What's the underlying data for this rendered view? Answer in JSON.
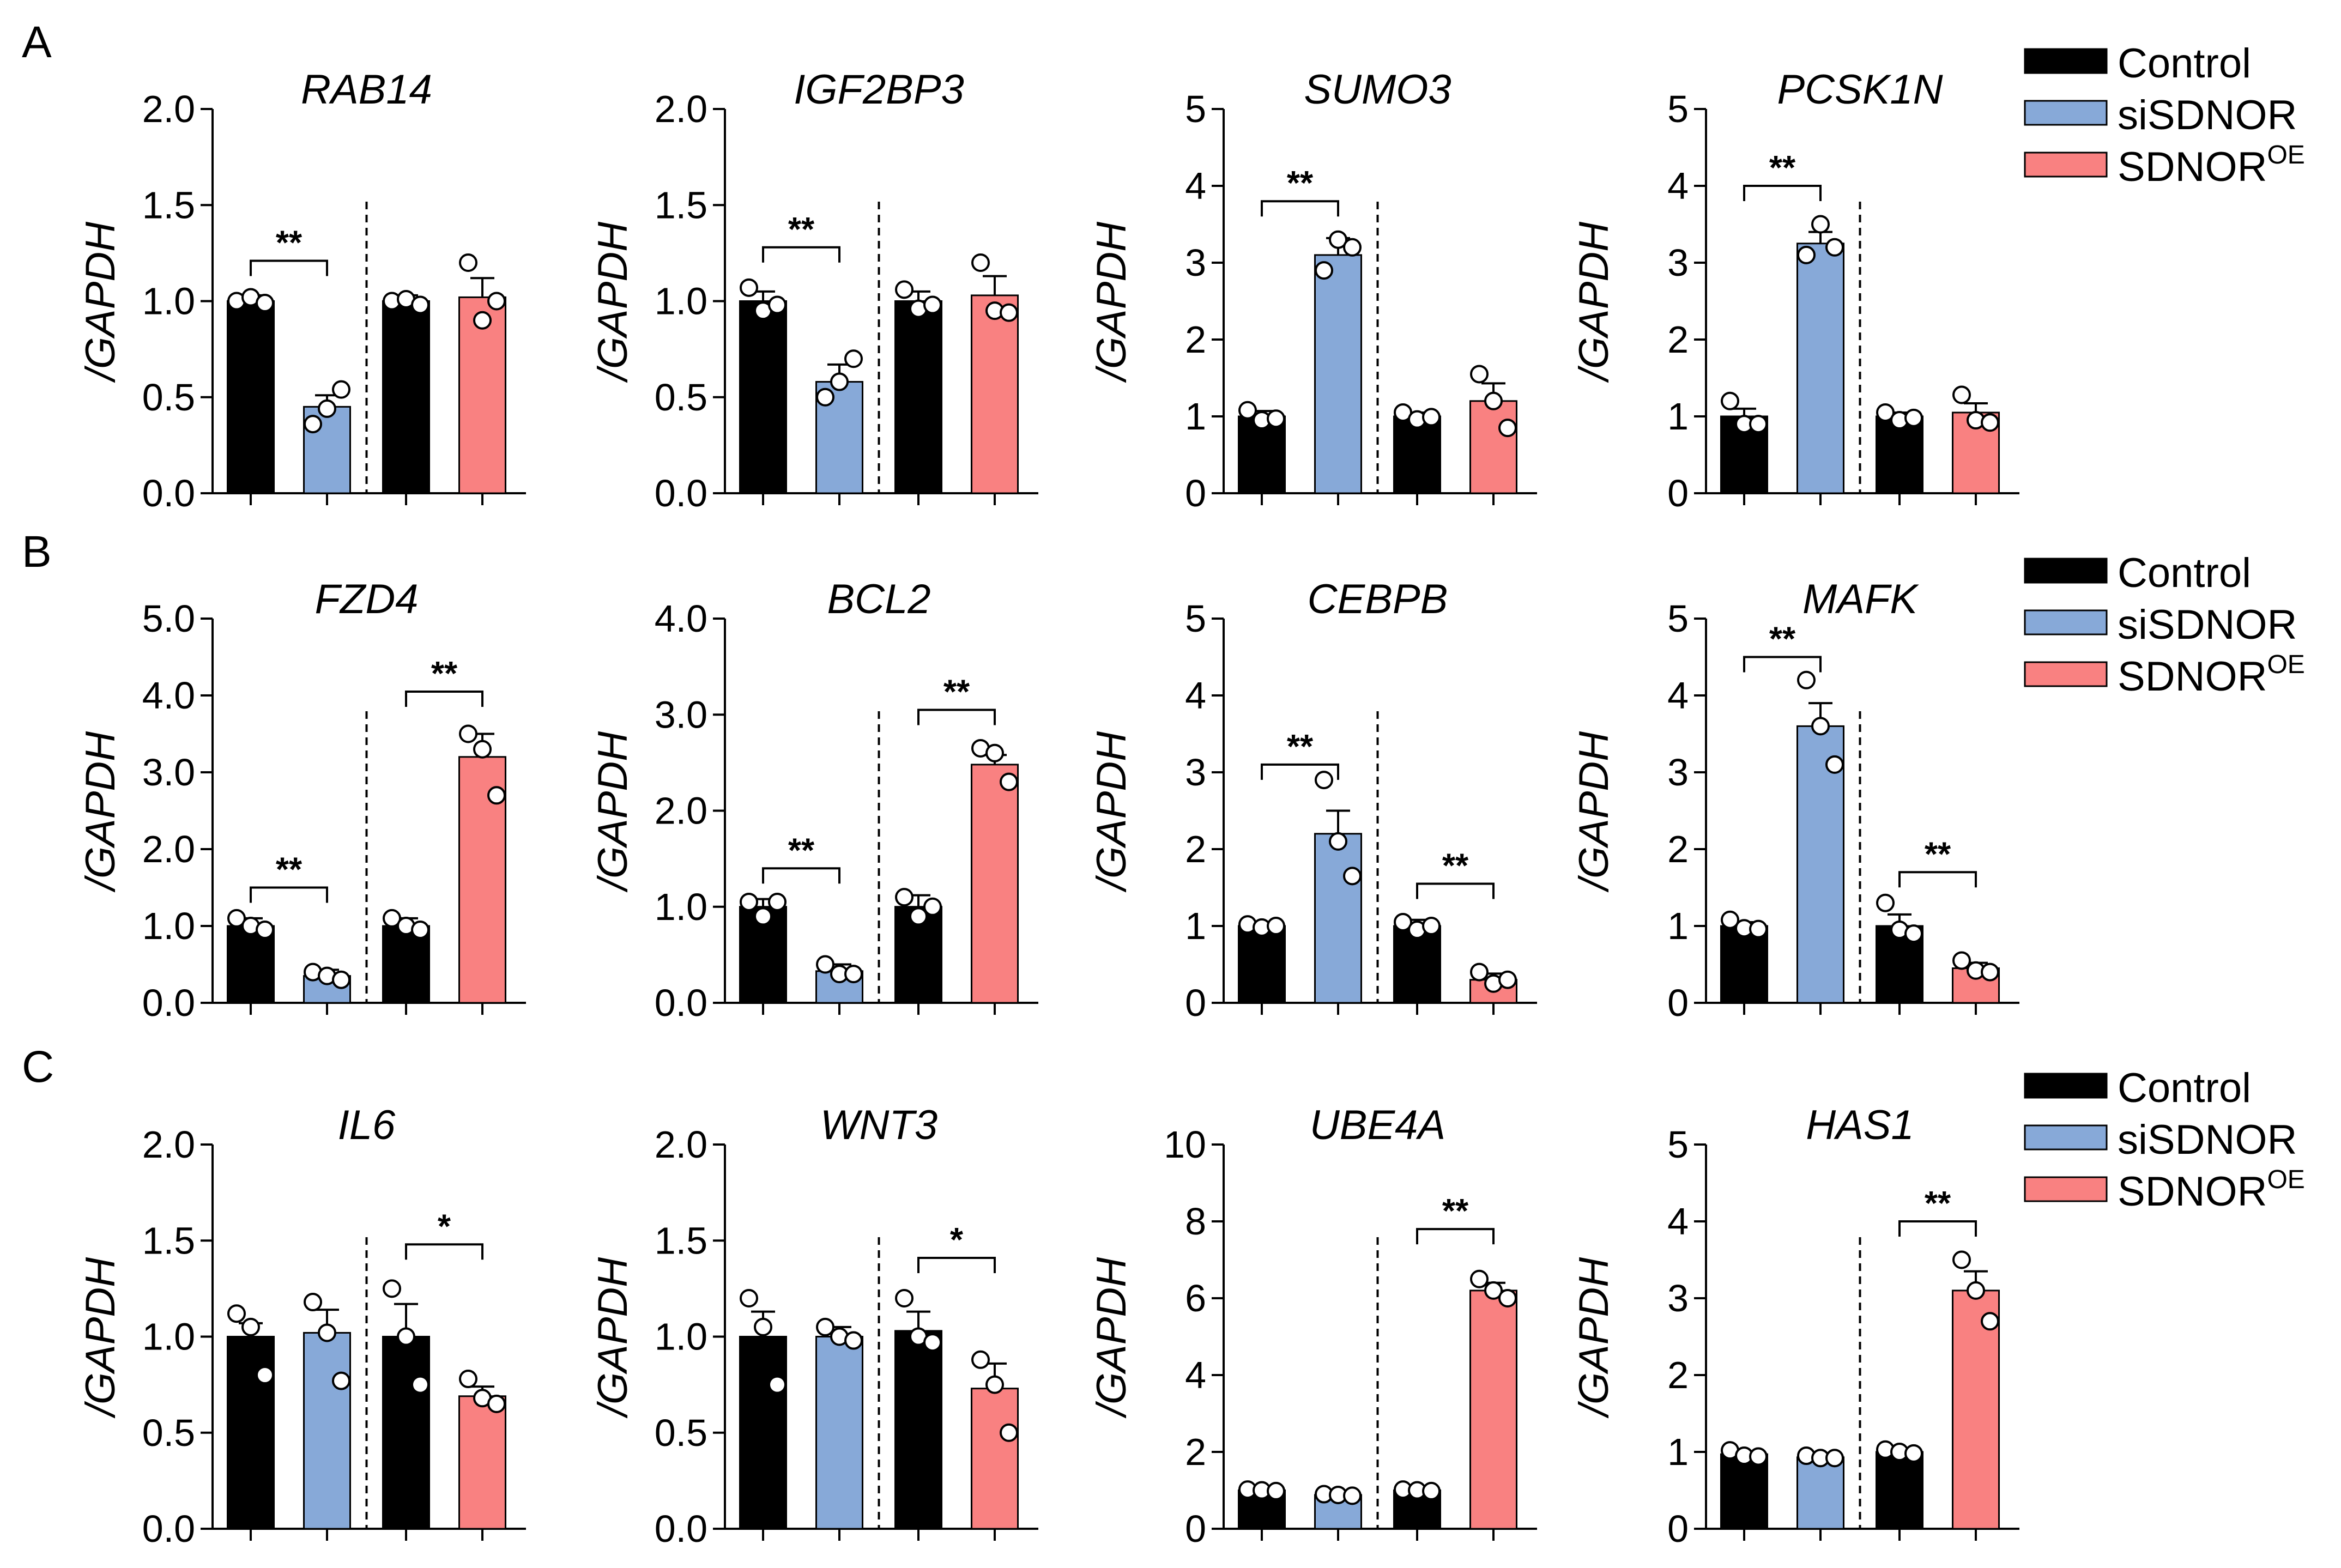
{
  "colors": {
    "Control": "#000000",
    "siSDNOR": "#87A9D8",
    "SDNOROE": "#F98181"
  },
  "panel_letters": [
    "A",
    "B",
    "C"
  ],
  "legend": [
    {
      "label": "Control",
      "sup": "",
      "color": "#000000"
    },
    {
      "label": "siSDNOR",
      "sup": "",
      "color": "#87A9D8"
    },
    {
      "label": "SDNOR",
      "sup": "OE",
      "color": "#F98181"
    }
  ],
  "chart_data": [
    {
      "type": "bar",
      "gene": "RAB14",
      "ylabel": "/GAPDH",
      "ylim": [
        0,
        2
      ],
      "yticks": [
        "0.0",
        "0.5",
        "1.0",
        "1.5",
        "2.0"
      ],
      "values": [
        1.0,
        0.45,
        1.0,
        1.02
      ],
      "errors": [
        0.03,
        0.06,
        0.03,
        0.1
      ],
      "points": [
        [
          1.0,
          1.02,
          0.99
        ],
        [
          0.36,
          0.44,
          0.54
        ],
        [
          1.0,
          1.01,
          0.98
        ],
        [
          1.2,
          0.9,
          1.0
        ]
      ],
      "significance": [
        {
          "bars": [
            0,
            1
          ],
          "label": "**",
          "y": 1.21
        }
      ]
    },
    {
      "type": "bar",
      "gene": "IGF2BP3",
      "ylabel": "/GAPDH",
      "ylim": [
        0,
        2
      ],
      "yticks": [
        "0.0",
        "0.5",
        "1.0",
        "1.5",
        "2.0"
      ],
      "values": [
        1.0,
        0.58,
        1.0,
        1.03
      ],
      "errors": [
        0.05,
        0.09,
        0.05,
        0.1
      ],
      "points": [
        [
          1.07,
          0.95,
          0.98
        ],
        [
          0.5,
          0.58,
          0.7
        ],
        [
          1.06,
          0.96,
          0.98
        ],
        [
          1.2,
          0.95,
          0.94
        ]
      ],
      "significance": [
        {
          "bars": [
            0,
            1
          ],
          "label": "**",
          "y": 1.28
        }
      ]
    },
    {
      "type": "bar",
      "gene": "SUMO3",
      "ylabel": "/GAPDH",
      "ylim": [
        0,
        5
      ],
      "yticks": [
        "0",
        "1",
        "2",
        "3",
        "4",
        "5"
      ],
      "values": [
        1.0,
        3.1,
        1.0,
        1.2
      ],
      "errors": [
        0.07,
        0.22,
        0.05,
        0.23
      ],
      "points": [
        [
          1.08,
          0.95,
          0.97
        ],
        [
          2.9,
          3.3,
          3.2
        ],
        [
          1.05,
          0.96,
          0.99
        ],
        [
          1.55,
          1.2,
          0.85
        ]
      ],
      "significance": [
        {
          "bars": [
            0,
            1
          ],
          "label": "**",
          "y": 3.8
        }
      ]
    },
    {
      "type": "bar",
      "gene": "PCSK1N",
      "ylabel": "/GAPDH",
      "ylim": [
        0,
        5
      ],
      "yticks": [
        "0",
        "1",
        "2",
        "3",
        "4",
        "5"
      ],
      "values": [
        1.0,
        3.25,
        1.0,
        1.05
      ],
      "errors": [
        0.1,
        0.15,
        0.05,
        0.12
      ],
      "points": [
        [
          1.2,
          0.9,
          0.9
        ],
        [
          3.1,
          3.5,
          3.2
        ],
        [
          1.05,
          0.95,
          0.98
        ],
        [
          1.28,
          0.95,
          0.92
        ]
      ],
      "significance": [
        {
          "bars": [
            0,
            1
          ],
          "label": "**",
          "y": 4.0
        }
      ]
    },
    {
      "type": "bar",
      "gene": "FZD4",
      "ylabel": "/GAPDH",
      "ylim": [
        0,
        5
      ],
      "yticks": [
        "0.0",
        "1.0",
        "2.0",
        "3.0",
        "4.0",
        "5.0"
      ],
      "values": [
        1.0,
        0.35,
        1.0,
        3.2
      ],
      "errors": [
        0.1,
        0.08,
        0.1,
        0.3
      ],
      "points": [
        [
          1.1,
          1.0,
          0.95
        ],
        [
          0.4,
          0.35,
          0.3
        ],
        [
          1.1,
          1.0,
          0.95
        ],
        [
          3.5,
          3.3,
          2.7
        ]
      ],
      "significance": [
        {
          "bars": [
            0,
            1
          ],
          "label": "**",
          "y": 1.5
        },
        {
          "bars": [
            2,
            3
          ],
          "label": "**",
          "y": 4.05
        }
      ]
    },
    {
      "type": "bar",
      "gene": "BCL2",
      "ylabel": "/GAPDH",
      "ylim": [
        0,
        4
      ],
      "yticks": [
        "0.0",
        "1.0",
        "2.0",
        "3.0",
        "4.0"
      ],
      "values": [
        1.0,
        0.33,
        1.0,
        2.48
      ],
      "errors": [
        0.08,
        0.07,
        0.12,
        0.1
      ],
      "points": [
        [
          1.05,
          0.9,
          1.05
        ],
        [
          0.4,
          0.3,
          0.3
        ],
        [
          1.1,
          0.9,
          1.0
        ],
        [
          2.65,
          2.6,
          2.3
        ]
      ],
      "significance": [
        {
          "bars": [
            0,
            1
          ],
          "label": "**",
          "y": 1.4
        },
        {
          "bars": [
            2,
            3
          ],
          "label": "**",
          "y": 3.05
        }
      ]
    },
    {
      "type": "bar",
      "gene": "CEBPB",
      "ylabel": "/GAPDH",
      "ylim": [
        0,
        5
      ],
      "yticks": [
        "0",
        "1",
        "2",
        "3",
        "4",
        "5"
      ],
      "values": [
        1.0,
        2.2,
        1.0,
        0.3
      ],
      "errors": [
        0.05,
        0.3,
        0.08,
        0.08
      ],
      "points": [
        [
          1.02,
          0.98,
          1.0
        ],
        [
          2.9,
          2.1,
          1.65
        ],
        [
          1.05,
          0.95,
          1.0
        ],
        [
          0.4,
          0.25,
          0.3
        ]
      ],
      "significance": [
        {
          "bars": [
            0,
            1
          ],
          "label": "**",
          "y": 3.1
        },
        {
          "bars": [
            2,
            3
          ],
          "label": "**",
          "y": 1.55
        }
      ]
    },
    {
      "type": "bar",
      "gene": "MAFK",
      "ylabel": "/GAPDH",
      "ylim": [
        0,
        5
      ],
      "yticks": [
        "0",
        "1",
        "2",
        "3",
        "4",
        "5"
      ],
      "values": [
        1.0,
        3.6,
        1.0,
        0.45
      ],
      "errors": [
        0.05,
        0.3,
        0.15,
        0.07
      ],
      "points": [
        [
          1.08,
          0.97,
          0.96
        ],
        [
          4.2,
          3.6,
          3.1
        ],
        [
          1.3,
          0.95,
          0.9
        ],
        [
          0.55,
          0.42,
          0.4
        ]
      ],
      "significance": [
        {
          "bars": [
            0,
            1
          ],
          "label": "**",
          "y": 4.5
        },
        {
          "bars": [
            2,
            3
          ],
          "label": "**",
          "y": 1.7
        }
      ]
    },
    {
      "type": "bar",
      "gene": "IL6",
      "ylabel": "/GAPDH",
      "ylim": [
        0,
        2
      ],
      "yticks": [
        "0.0",
        "0.5",
        "1.0",
        "1.5",
        "2.0"
      ],
      "values": [
        1.0,
        1.02,
        1.0,
        0.69
      ],
      "errors": [
        0.07,
        0.12,
        0.17,
        0.05
      ],
      "points": [
        [
          1.12,
          1.05,
          0.8
        ],
        [
          1.18,
          1.02,
          0.77
        ],
        [
          1.25,
          1.0,
          0.75
        ],
        [
          0.78,
          0.68,
          0.65
        ]
      ],
      "significance": [
        {
          "bars": [
            2,
            3
          ],
          "label": "*",
          "y": 1.48
        }
      ]
    },
    {
      "type": "bar",
      "gene": "WNT3",
      "ylabel": "/GAPDH",
      "ylim": [
        0,
        2
      ],
      "yticks": [
        "0.0",
        "0.5",
        "1.0",
        "1.5",
        "2.0"
      ],
      "values": [
        1.0,
        1.0,
        1.03,
        0.73
      ],
      "errors": [
        0.13,
        0.05,
        0.1,
        0.13
      ],
      "points": [
        [
          1.2,
          1.05,
          0.75
        ],
        [
          1.05,
          1.0,
          0.98
        ],
        [
          1.2,
          1.0,
          0.97
        ],
        [
          0.88,
          0.75,
          0.5
        ]
      ],
      "significance": [
        {
          "bars": [
            2,
            3
          ],
          "label": "*",
          "y": 1.41
        }
      ]
    },
    {
      "type": "bar",
      "gene": "UBE4A",
      "ylabel": "/GAPDH",
      "ylim": [
        0,
        10
      ],
      "yticks": [
        "0",
        "2",
        "4",
        "6",
        "8",
        "10"
      ],
      "values": [
        1.0,
        0.88,
        1.0,
        6.2
      ],
      "errors": [
        0.04,
        0.04,
        0.04,
        0.2
      ],
      "points": [
        [
          1.02,
          1.0,
          0.98
        ],
        [
          0.9,
          0.88,
          0.86
        ],
        [
          1.02,
          1.0,
          0.98
        ],
        [
          6.5,
          6.2,
          6.0
        ]
      ],
      "significance": [
        {
          "bars": [
            2,
            3
          ],
          "label": "**",
          "y": 7.8
        }
      ]
    },
    {
      "type": "bar",
      "gene": "HAS1",
      "ylabel": "/GAPDH",
      "ylim": [
        0,
        5
      ],
      "yticks": [
        "0",
        "1",
        "2",
        "3",
        "4",
        "5"
      ],
      "values": [
        0.97,
        0.93,
        1.0,
        3.1
      ],
      "errors": [
        0.04,
        0.03,
        0.03,
        0.25
      ],
      "points": [
        [
          1.02,
          0.95,
          0.94
        ],
        [
          0.95,
          0.92,
          0.92
        ],
        [
          1.03,
          1.0,
          0.98
        ],
        [
          3.5,
          3.1,
          2.7
        ]
      ],
      "significance": [
        {
          "bars": [
            2,
            3
          ],
          "label": "**",
          "y": 4.0
        }
      ]
    }
  ]
}
